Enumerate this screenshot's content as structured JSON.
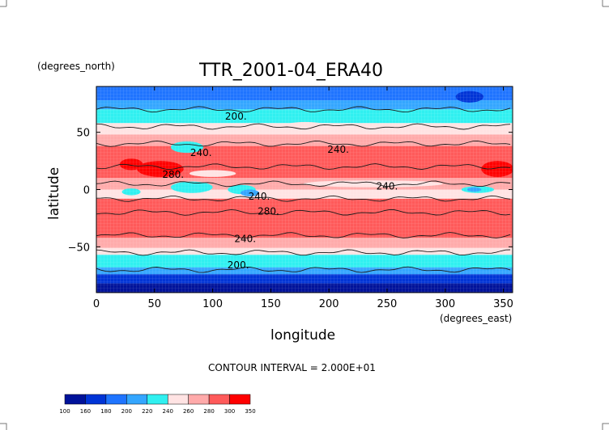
{
  "chart_data": {
    "type": "heatmap",
    "title": "TTR_2001-04_ERA40",
    "xlabel": "longitude",
    "ylabel": "latitude",
    "x_units": "(degrees_east)",
    "y_units": "(degrees_north)",
    "xlim": [
      0,
      358
    ],
    "ylim": [
      -90,
      90
    ],
    "x_ticks": [
      0,
      50,
      100,
      150,
      200,
      250,
      300,
      350
    ],
    "y_ticks": [
      50,
      0,
      -50
    ],
    "contour_interval_text": "CONTOUR INTERVAL = 2.000E+01",
    "contour_labels": [
      {
        "text": "200.",
        "lon": 120,
        "lat": 64
      },
      {
        "text": "240.",
        "lon": 90,
        "lat": 32
      },
      {
        "text": "240.",
        "lon": 208,
        "lat": 35
      },
      {
        "text": "240.",
        "lon": 250,
        "lat": 3
      },
      {
        "text": "280.",
        "lon": 66,
        "lat": 13
      },
      {
        "text": "280.",
        "lon": 148,
        "lat": -19
      },
      {
        "text": "240.",
        "lon": 140,
        "lat": -6
      },
      {
        "text": "240.",
        "lon": 128,
        "lat": -43
      },
      {
        "text": "200.",
        "lon": 122,
        "lat": -66
      }
    ],
    "legend": {
      "levels": [
        "100",
        "160",
        "180",
        "200",
        "220",
        "240",
        "260",
        "280",
        "300",
        "350"
      ],
      "colors": [
        "#00129a",
        "#0034d6",
        "#1f74ff",
        "#34a6ff",
        "#30f0f0",
        "#ffe3e3",
        "#ffaaaa",
        "#ff5a5a",
        "#ff0000"
      ]
    },
    "zonal_bands": [
      {
        "lat_from": 90,
        "lat_to": 78,
        "class": 2
      },
      {
        "lat_from": 78,
        "lat_to": 70,
        "class": 3
      },
      {
        "lat_from": 70,
        "lat_to": 58,
        "class": 4
      },
      {
        "lat_from": 58,
        "lat_to": 48,
        "class": 5
      },
      {
        "lat_from": 48,
        "lat_to": 38,
        "class": 6
      },
      {
        "lat_from": 38,
        "lat_to": 10,
        "class": 7
      },
      {
        "lat_from": 10,
        "lat_to": 0,
        "class": 6
      },
      {
        "lat_from": 0,
        "lat_to": -8,
        "class": 5
      },
      {
        "lat_from": -8,
        "lat_to": -42,
        "class": 7
      },
      {
        "lat_from": -42,
        "lat_to": -51,
        "class": 6
      },
      {
        "lat_from": -51,
        "lat_to": -57,
        "class": 5
      },
      {
        "lat_from": -57,
        "lat_to": -68,
        "class": 4
      },
      {
        "lat_from": -68,
        "lat_to": -74,
        "class": 3
      },
      {
        "lat_from": -74,
        "lat_to": -82,
        "class": 1
      },
      {
        "lat_from": -82,
        "lat_to": -90,
        "class": 0
      }
    ],
    "anomalies": [
      {
        "lon": 321,
        "lat": 81,
        "rlon": 12,
        "rlat": 5,
        "class": 1
      },
      {
        "lon": 78,
        "lat": 37,
        "rlon": 14,
        "rlat": 5,
        "class": 4
      },
      {
        "lon": 180,
        "lat": 55,
        "rlon": 20,
        "rlat": 4,
        "class": 5
      },
      {
        "lon": 55,
        "lat": 18,
        "rlon": 20,
        "rlat": 7,
        "class": 8
      },
      {
        "lon": 345,
        "lat": 18,
        "rlon": 14,
        "rlat": 7,
        "class": 8
      },
      {
        "lon": 30,
        "lat": 22,
        "rlon": 10,
        "rlat": 5,
        "class": 8
      },
      {
        "lon": 82,
        "lat": 2,
        "rlon": 18,
        "rlat": 5,
        "class": 4
      },
      {
        "lon": 125,
        "lat": 0,
        "rlon": 12,
        "rlat": 4,
        "class": 4
      },
      {
        "lon": 132,
        "lat": -3,
        "rlon": 8,
        "rlat": 3,
        "class": 3
      },
      {
        "lon": 328,
        "lat": 0,
        "rlon": 14,
        "rlat": 3,
        "class": 4
      },
      {
        "lon": 325,
        "lat": 0,
        "rlon": 6,
        "rlat": 2,
        "class": 3
      },
      {
        "lon": 30,
        "lat": -2,
        "rlon": 8,
        "rlat": 3,
        "class": 4
      },
      {
        "lon": 238,
        "lat": 5,
        "rlon": 60,
        "rlat": 3,
        "class": 5
      },
      {
        "lon": 100,
        "lat": 14,
        "rlon": 20,
        "rlat": 3,
        "class": 5
      }
    ],
    "contour_lines_lat": [
      70,
      55,
      40,
      20,
      5,
      -8,
      -20,
      -40,
      -55,
      -70
    ]
  }
}
